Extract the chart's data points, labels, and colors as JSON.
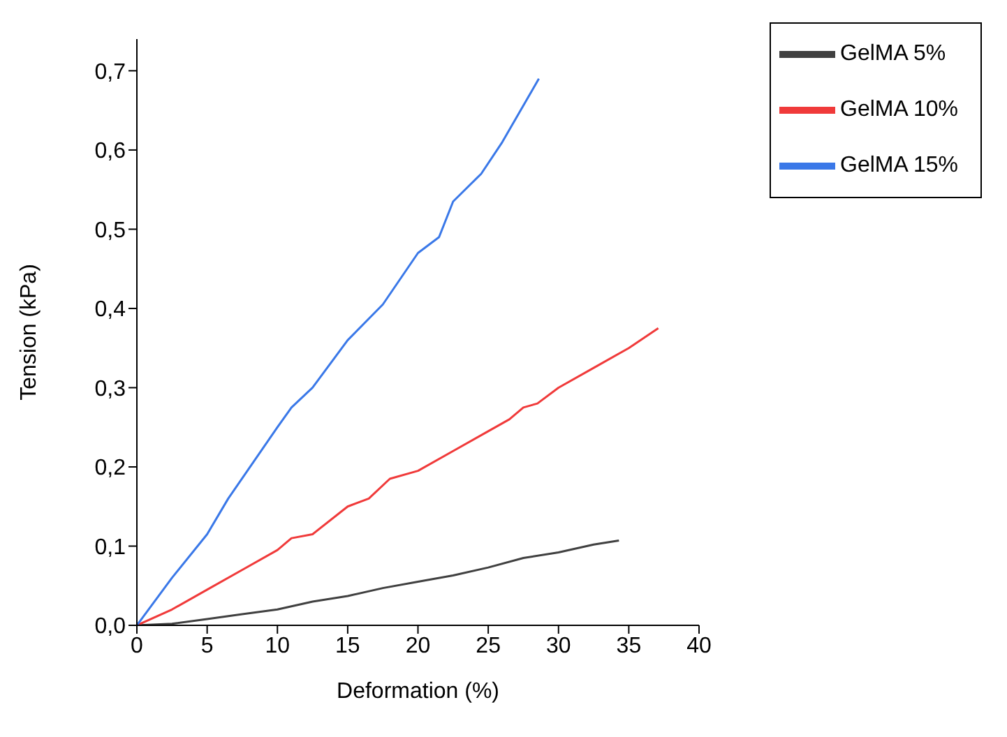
{
  "chart_data": {
    "type": "line",
    "xlabel": "Deformation (%)",
    "ylabel": "Tension (kPa)",
    "xlim": [
      0,
      40
    ],
    "xticks": [
      0,
      5,
      10,
      15,
      20,
      25,
      30,
      35,
      40
    ],
    "ylim": [
      0,
      0.74
    ],
    "yticks": [
      {
        "value": 0,
        "label": "0,0"
      },
      {
        "value": 0.1,
        "label": "0,1"
      },
      {
        "value": 0.2,
        "label": "0,2"
      },
      {
        "value": 0.3,
        "label": "0,3"
      },
      {
        "value": 0.4,
        "label": "0,4"
      },
      {
        "value": 0.5,
        "label": "0,5"
      },
      {
        "value": 0.6,
        "label": "0,6"
      },
      {
        "value": 0.7,
        "label": "0,7"
      }
    ],
    "grid": false,
    "legend": "top right",
    "marker": "none",
    "line_style": "solid",
    "series": [
      {
        "name": "GelMA 5%",
        "color": "#404040",
        "x": [
          0,
          2.5,
          5,
          7.5,
          10,
          12.5,
          15,
          17.5,
          20,
          22.5,
          25,
          27.5,
          30,
          32.5,
          34.3
        ],
        "values": [
          0,
          0.002,
          0.008,
          0.014,
          0.02,
          0.03,
          0.037,
          0.047,
          0.055,
          0.063,
          0.073,
          0.085,
          0.092,
          0.102,
          0.107
        ]
      },
      {
        "name": "GelMA 10%",
        "color": "#f03a3a",
        "x": [
          0,
          2.5,
          5,
          7.5,
          10,
          11,
          12.5,
          15,
          16.5,
          18,
          20,
          22.5,
          25,
          26.5,
          27.5,
          28.5,
          30,
          32.5,
          35,
          37.1
        ],
        "values": [
          0,
          0.02,
          0.045,
          0.07,
          0.095,
          0.11,
          0.115,
          0.15,
          0.16,
          0.185,
          0.195,
          0.22,
          0.245,
          0.26,
          0.275,
          0.28,
          0.3,
          0.325,
          0.35,
          0.375
        ]
      },
      {
        "name": "GelMA 15%",
        "color": "#3a78e8",
        "x": [
          0,
          2.5,
          5,
          6.5,
          10,
          11,
          12.5,
          15,
          17.5,
          20,
          21.5,
          22.5,
          24.5,
          26,
          28.6
        ],
        "values": [
          0,
          0.06,
          0.115,
          0.16,
          0.25,
          0.275,
          0.3,
          0.36,
          0.405,
          0.47,
          0.49,
          0.535,
          0.57,
          0.61,
          0.69
        ]
      }
    ]
  }
}
